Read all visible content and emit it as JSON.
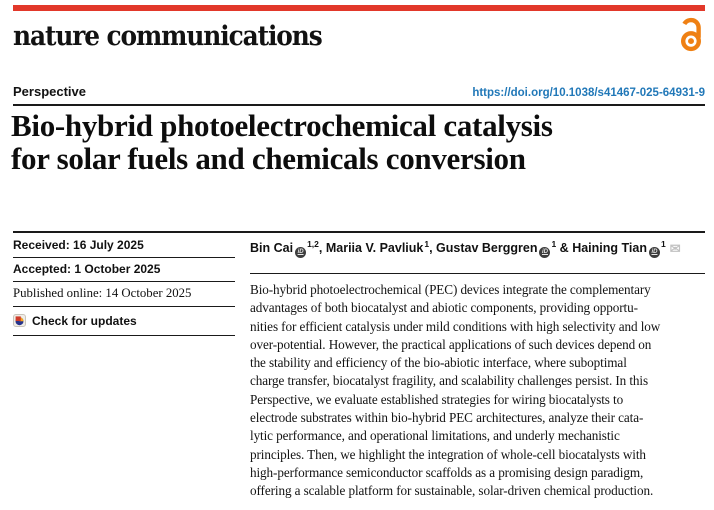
{
  "masthead": {
    "journal_name": "nature communications",
    "accent_red": "#e2382a",
    "oa_icon_color": "#ef8013"
  },
  "article_banner": {
    "type_label": "Perspective",
    "doi_link": "https://doi.org/10.1038/s41467-025-64931-9",
    "doi_color": "#2178b8"
  },
  "title": {
    "lines": [
      "Bio-hybrid photoelectrochemical catalysis",
      "for solar fuels and chemicals conversion"
    ]
  },
  "history": {
    "received": "Received: 16 July 2025",
    "accepted": "Accepted: 1 October 2025",
    "published_online": "Published online: 14 October 2025",
    "check_updates_label": "Check for updates"
  },
  "authors": {
    "list": [
      {
        "name": "Bin Cai",
        "sup": "1,2",
        "sep": ", ",
        "orcid": true
      },
      {
        "name": "Mariia V. Pavliuk",
        "sup": "1",
        "sep": ", ",
        "orcid": false
      },
      {
        "name": "Gustav Berggren",
        "sup": "1",
        "sep": " & ",
        "orcid": true
      },
      {
        "name": "Haining Tian",
        "sup": "1",
        "sep": "",
        "orcid": true
      }
    ]
  },
  "icons": {
    "orcid_glyph": "iD",
    "envelope_glyph": "✉"
  },
  "abstract": {
    "lines": [
      "Bio-hybrid photoelectrochemical (PEC) devices integrate the complementary",
      "advantages of both biocatalyst and abiotic components, providing opportu-",
      "nities for efficient catalysis under mild conditions with high selectivity and low",
      "over-potential. However, the practical applications of such devices depend on",
      "the stability and efficiency of the bio-abiotic interface, where suboptimal",
      "charge transfer, biocatalyst fragility, and scalability challenges persist. In this",
      "Perspective, we evaluate established strategies for wiring biocatalysts to",
      "electrode substrates within bio-hybrid PEC architectures, analyze their cata-",
      "lytic performance, and operational limitations, and underly mechanistic",
      "principles. Then, we highlight the integration of whole-cell biocatalysts with",
      "high-performance semiconductor scaffolds as a promising design paradigm,",
      "offering a scalable platform for sustainable, solar-driven chemical production."
    ]
  }
}
